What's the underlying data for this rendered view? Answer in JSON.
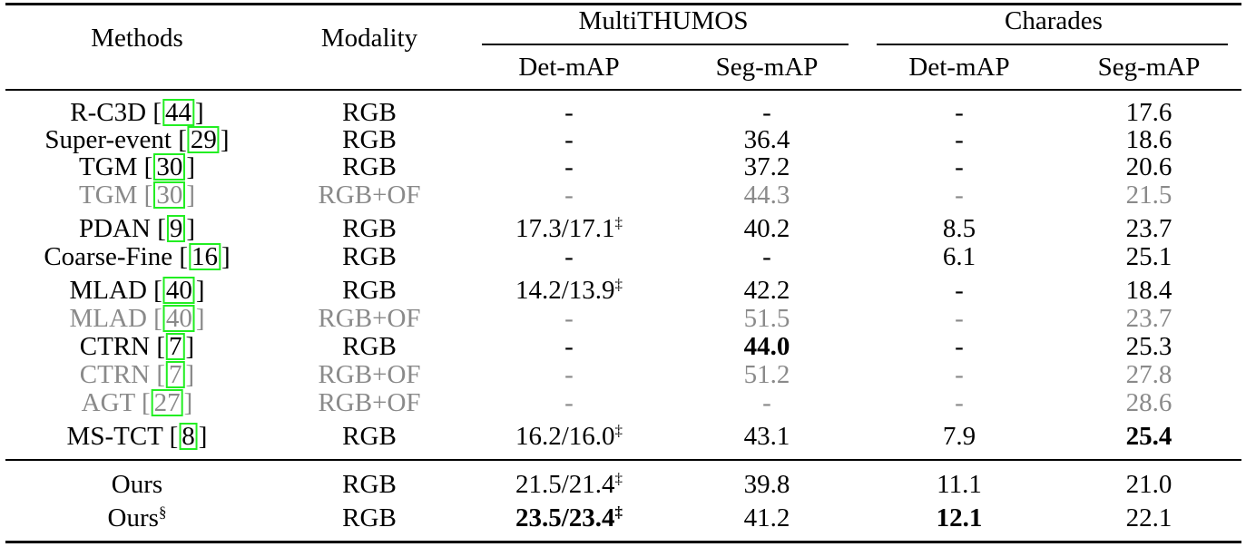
{
  "header": {
    "methods": "Methods",
    "modality": "Modality",
    "group1": "MultiTHUMOS",
    "group2": "Charades",
    "det1": "Det-mAP",
    "seg1": "Seg-mAP",
    "det2": "Det-mAP",
    "seg2": "Seg-mAP"
  },
  "rows": [
    {
      "name": "R-C3D",
      "ref": "44",
      "mod": "RGB",
      "mt_det": "-",
      "mt_seg": "-",
      "ch_det": "-",
      "ch_seg": "17.6",
      "gray": false
    },
    {
      "name": "Super-event",
      "ref": "29",
      "mod": "RGB",
      "mt_det": "-",
      "mt_seg": "36.4",
      "ch_det": "-",
      "ch_seg": "18.6",
      "gray": false
    },
    {
      "name": "TGM",
      "ref": "30",
      "mod": "RGB",
      "mt_det": "-",
      "mt_seg": "37.2",
      "ch_det": "-",
      "ch_seg": "20.6",
      "gray": false
    },
    {
      "name": "TGM",
      "ref": "30",
      "mod": "RGB+OF",
      "mt_det": "-",
      "mt_seg": "44.3",
      "ch_det": "-",
      "ch_seg": "21.5",
      "gray": true
    },
    {
      "name": "PDAN",
      "ref": "9",
      "mod": "RGB",
      "mt_det": "17.3/17.1",
      "mt_det_sup": "‡",
      "mt_seg": "40.2",
      "ch_det": "8.5",
      "ch_seg": "23.7",
      "gray": false
    },
    {
      "name": "Coarse-Fine",
      "ref": "16",
      "mod": "RGB",
      "mt_det": "-",
      "mt_seg": "-",
      "ch_det": "6.1",
      "ch_seg": "25.1",
      "gray": false
    },
    {
      "name": "MLAD",
      "ref": "40",
      "mod": "RGB",
      "mt_det": "14.2/13.9",
      "mt_det_sup": "‡",
      "mt_seg": "42.2",
      "ch_det": "-",
      "ch_seg": "18.4",
      "gray": false
    },
    {
      "name": "MLAD",
      "ref": "40",
      "mod": "RGB+OF",
      "mt_det": "-",
      "mt_seg": "51.5",
      "ch_det": "-",
      "ch_seg": "23.7",
      "gray": true
    },
    {
      "name": "CTRN",
      "ref": "7",
      "mod": "RGB",
      "mt_det": "-",
      "mt_seg": "44.0",
      "mt_seg_bold": true,
      "ch_det": "-",
      "ch_seg": "25.3",
      "gray": false
    },
    {
      "name": "CTRN",
      "ref": "7",
      "mod": "RGB+OF",
      "mt_det": "-",
      "mt_seg": "51.2",
      "ch_det": "-",
      "ch_seg": "27.8",
      "gray": true
    },
    {
      "name": "AGT",
      "ref": "27",
      "mod": "RGB+OF",
      "mt_det": "-",
      "mt_seg": "-",
      "ch_det": "-",
      "ch_seg": "28.6",
      "gray": true
    },
    {
      "name": "MS-TCT",
      "ref": "8",
      "mod": "RGB",
      "mt_det": "16.2/16.0",
      "mt_det_sup": "‡",
      "mt_seg": "43.1",
      "ch_det": "7.9",
      "ch_seg": "25.4",
      "ch_seg_bold": true,
      "gray": false
    },
    {
      "name": "Ours",
      "mod": "RGB",
      "mt_det": "21.5/21.4",
      "mt_det_sup": "‡",
      "mt_seg": "39.8",
      "ch_det": "11.1",
      "ch_seg": "21.0",
      "gray": false
    },
    {
      "name": "Ours",
      "name_sup": "§",
      "mod": "RGB",
      "mt_det": "23.5/23.4",
      "mt_det_sup": "‡",
      "mt_det_bold": true,
      "mt_seg": "41.2",
      "ch_det": "12.1",
      "ch_det_bold": true,
      "ch_seg": "22.1",
      "gray": false
    }
  ]
}
